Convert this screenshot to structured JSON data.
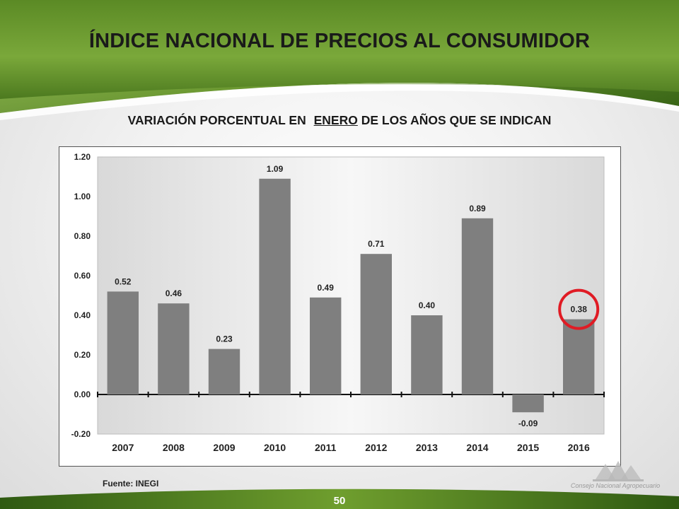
{
  "slide": {
    "title": "ÍNDICE NACIONAL DE PRECIOS AL CONSUMIDOR",
    "subtitle_prefix": "VARIACIÓN PORCENTUAL EN",
    "subtitle_emphasis": "ENERO",
    "subtitle_suffix": "DE LOS AÑOS QUE SE INDICAN",
    "source": "Fuente:  INEGI",
    "page_number": "50",
    "logo_text": "Consejo Nacional Agropecuario"
  },
  "colors": {
    "header_dark": "#2f5a12",
    "header_light": "#7aa83a",
    "bar": "#7f7f7f",
    "highlight_circle": "#e01b24"
  },
  "chart_data": {
    "type": "bar",
    "categories": [
      "2007",
      "2008",
      "2009",
      "2010",
      "2011",
      "2012",
      "2013",
      "2014",
      "2015",
      "2016"
    ],
    "values": [
      0.52,
      0.46,
      0.23,
      1.09,
      0.49,
      0.71,
      0.4,
      0.89,
      -0.09,
      0.38
    ],
    "value_labels": [
      "0.52",
      "0.46",
      "0.23",
      "1.09",
      "0.49",
      "0.71",
      "0.40",
      "0.89",
      "-0.09",
      "0.38"
    ],
    "yticks": [
      "1.20",
      "1.00",
      "0.80",
      "0.60",
      "0.40",
      "0.20",
      "0.00",
      "-0.20"
    ],
    "ytick_values": [
      1.2,
      1.0,
      0.8,
      0.6,
      0.4,
      0.2,
      0.0,
      -0.2
    ],
    "ylim": [
      -0.2,
      1.2
    ],
    "highlight_category": "2016",
    "grid": false,
    "legend": "none"
  }
}
